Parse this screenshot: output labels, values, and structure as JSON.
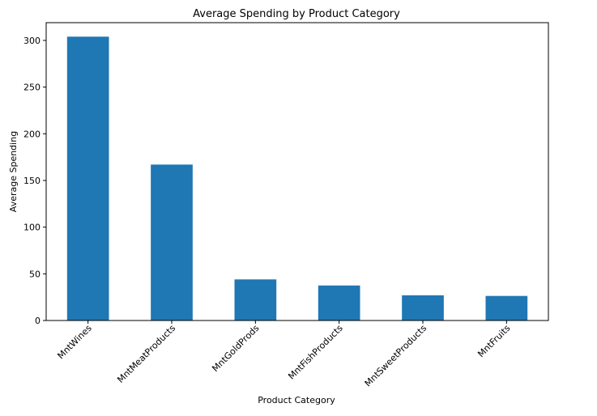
{
  "chart_data": {
    "type": "bar",
    "title": "Average Spending by Product Category",
    "xlabel": "Product Category",
    "ylabel": "Average Spending",
    "categories": [
      "MntWines",
      "MntMeatProducts",
      "MntGoldProds",
      "MntFishProducts",
      "MntSweetProducts",
      "MntFruits"
    ],
    "values": [
      304,
      167,
      44,
      37.5,
      27,
      26.3
    ],
    "ylim": [
      0,
      319
    ],
    "yticks": [
      0,
      50,
      100,
      150,
      200,
      250,
      300
    ],
    "grid": false,
    "bar_color": "#1f77b4"
  }
}
